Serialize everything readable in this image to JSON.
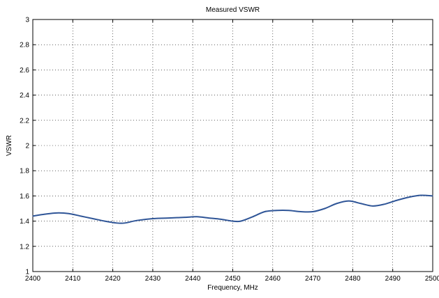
{
  "chart_data": {
    "type": "line",
    "title": "Measured VSWR",
    "xlabel": "Frequency, MHz",
    "ylabel": "VSWR",
    "xlim": [
      2400,
      2500
    ],
    "ylim": [
      1,
      3
    ],
    "xticks": [
      2400,
      2410,
      2420,
      2430,
      2440,
      2450,
      2460,
      2470,
      2480,
      2490,
      2500
    ],
    "yticks": [
      1,
      1.2,
      1.4,
      1.6,
      1.8,
      2,
      2.2,
      2.4,
      2.6,
      2.8,
      3
    ],
    "xtick_labels": [
      "2400",
      "2410",
      "2420",
      "2430",
      "2440",
      "2450",
      "2460",
      "2470",
      "2480",
      "2490",
      "2500"
    ],
    "ytick_labels": [
      "1",
      "1.2",
      "1.4",
      "1.6",
      "1.8",
      "2",
      "2.2",
      "2.4",
      "2.6",
      "2.8",
      "3"
    ],
    "grid": true,
    "series": [
      {
        "color": "#2f5597",
        "x": [
          2400,
          2403,
          2406,
          2409,
          2412,
          2415,
          2418,
          2421,
          2423,
          2426,
          2430,
          2434,
          2438,
          2441,
          2444,
          2447,
          2450,
          2452,
          2455,
          2458,
          2461,
          2464,
          2467,
          2470,
          2473,
          2476,
          2479,
          2482,
          2485,
          2488,
          2491,
          2494,
          2497,
          2500
        ],
        "y": [
          1.44,
          1.455,
          1.465,
          1.46,
          1.44,
          1.42,
          1.4,
          1.385,
          1.385,
          1.405,
          1.42,
          1.425,
          1.43,
          1.435,
          1.425,
          1.415,
          1.4,
          1.4,
          1.435,
          1.475,
          1.485,
          1.485,
          1.475,
          1.475,
          1.5,
          1.54,
          1.56,
          1.54,
          1.52,
          1.535,
          1.565,
          1.59,
          1.605,
          1.6
        ]
      }
    ]
  }
}
